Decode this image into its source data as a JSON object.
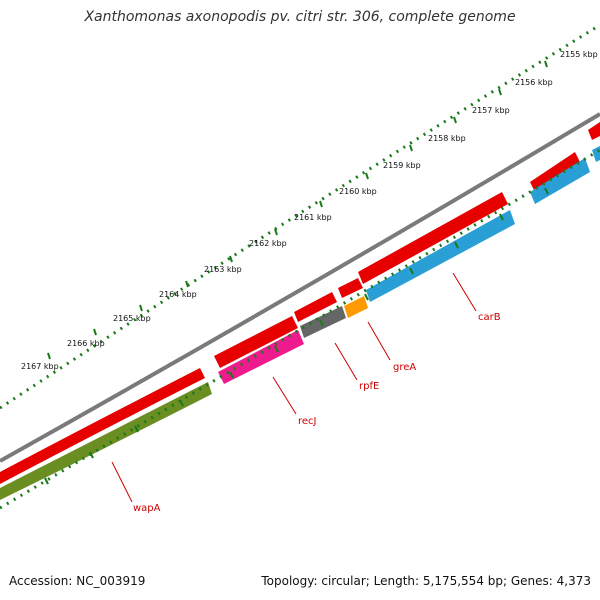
{
  "title": "Xanthomonas axonopodis pv. citri str. 306, complete genome",
  "footer": {
    "accession": "Accession: NC_003919",
    "summary": "Topology: circular; Length: 5,175,554 bp; Genes: 4,373"
  },
  "colors": {
    "backbone": "#7a7a7a",
    "forward_gene": "#e60000",
    "tick": "#1a7a1a",
    "label": "#cc0000",
    "wapA": "#6b8e23",
    "recJ": "#ee1b8e",
    "rpfE": "#666666",
    "greA": "#ff9900",
    "carB": "#2a9fd6"
  },
  "scale_labels": [
    "2155 kbp",
    "2156 kbp",
    "2157 kbp",
    "2158 kbp",
    "2159 kbp",
    "2160 kbp",
    "2161 kbp",
    "2162 kbp",
    "2163 kbp",
    "2164 kbp",
    "2165 kbp",
    "2166 kbp",
    "2167 kbp"
  ],
  "gene_labels": {
    "wapA": "wapA",
    "recJ": "recJ",
    "rpfE": "rpfE",
    "greA": "greA",
    "carB": "carB"
  }
}
